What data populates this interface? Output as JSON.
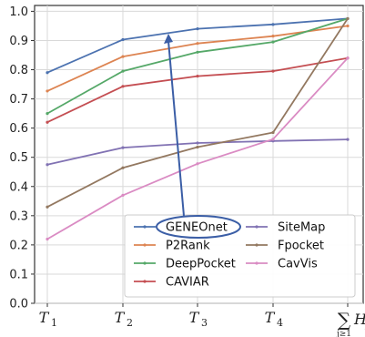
{
  "chart_data": {
    "type": "line",
    "categories": [
      "T1",
      "T2",
      "T3",
      "T4",
      "ΣH_j"
    ],
    "x_tick_labels": [
      {
        "base": "T",
        "sub": "1"
      },
      {
        "base": "T",
        "sub": "2"
      },
      {
        "base": "T",
        "sub": "3"
      },
      {
        "base": "T",
        "sub": "4"
      },
      {
        "sum": "∑",
        "base": "H",
        "sub": "j",
        "under": "j≥1"
      }
    ],
    "yticks": [
      "0.0",
      "0.1",
      "0.2",
      "0.3",
      "0.4",
      "0.5",
      "0.6",
      "0.7",
      "0.8",
      "0.9",
      "1.0"
    ],
    "ylim": [
      0.0,
      1.02
    ],
    "grid": true,
    "legend_position": "lower-right",
    "legend_columns": 2,
    "highlighted_series": "GENEOnet",
    "series": [
      {
        "name": "GENEOnet",
        "color": "#4c72b0",
        "values": [
          0.79,
          0.903,
          0.94,
          0.955,
          0.975
        ]
      },
      {
        "name": "P2Rank",
        "color": "#dd8452",
        "values": [
          0.727,
          0.845,
          0.89,
          0.915,
          0.95
        ]
      },
      {
        "name": "DeepPocket",
        "color": "#55a868",
        "values": [
          0.65,
          0.795,
          0.86,
          0.895,
          0.975
        ]
      },
      {
        "name": "CAVIAR",
        "color": "#c44e52",
        "values": [
          0.62,
          0.743,
          0.778,
          0.795,
          0.84
        ]
      },
      {
        "name": "SiteMap",
        "color": "#8172b3",
        "values": [
          0.475,
          0.533,
          0.549,
          0.556,
          0.561
        ]
      },
      {
        "name": "Fpocket",
        "color": "#937860",
        "values": [
          0.33,
          0.464,
          0.535,
          0.585,
          0.975
        ]
      },
      {
        "name": "CavVis",
        "color": "#da8bc3",
        "values": [
          0.22,
          0.37,
          0.478,
          0.562,
          0.84
        ]
      }
    ]
  }
}
